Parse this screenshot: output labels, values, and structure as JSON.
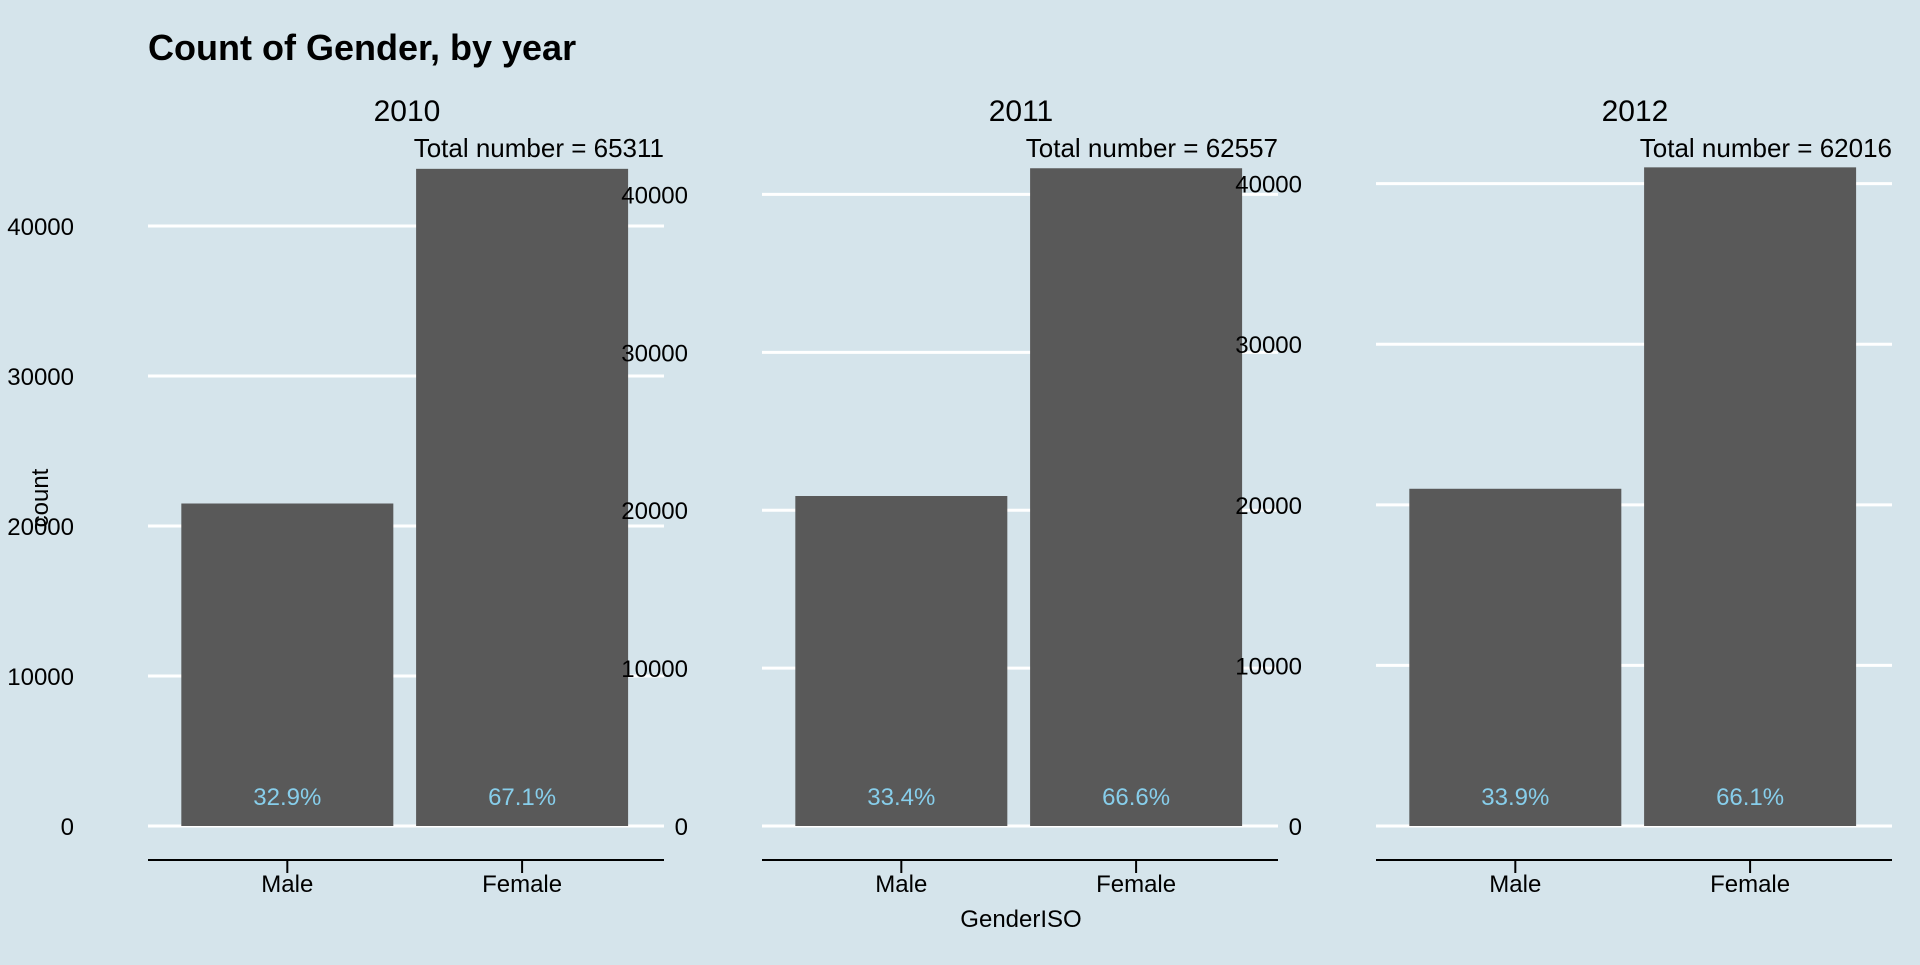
{
  "chart_data": {
    "type": "bar",
    "title": "Count of Gender, by year",
    "xlabel": "GenderISO",
    "ylabel": "count",
    "grid": true,
    "colors": {
      "background": "#d5e4eb",
      "bar": "#595959",
      "gridline": "#ffffff",
      "percent_label": "#87ceeb",
      "text": "#000000"
    },
    "categories": [
      "Male",
      "Female"
    ],
    "panels": [
      {
        "title": "2010",
        "subtitle": "Total number = 65311",
        "values": [
          21500,
          43811
        ],
        "labels": [
          "32.9%",
          "67.1%"
        ],
        "ylim": [
          0,
          44000
        ],
        "yticks": [
          0,
          10000,
          20000,
          30000,
          40000
        ]
      },
      {
        "title": "2011",
        "subtitle": "Total number = 62557",
        "values": [
          20900,
          41657
        ],
        "labels": [
          "33.4%",
          "66.6%"
        ],
        "ylim": [
          0,
          41800
        ],
        "yticks": [
          0,
          10000,
          20000,
          30000,
          40000
        ]
      },
      {
        "title": "2012",
        "subtitle": "Total number = 62016",
        "values": [
          21000,
          41016
        ],
        "labels": [
          "33.9%",
          "66.1%"
        ],
        "ylim": [
          0,
          41100
        ],
        "yticks": [
          0,
          10000,
          20000,
          30000,
          40000
        ]
      }
    ]
  }
}
